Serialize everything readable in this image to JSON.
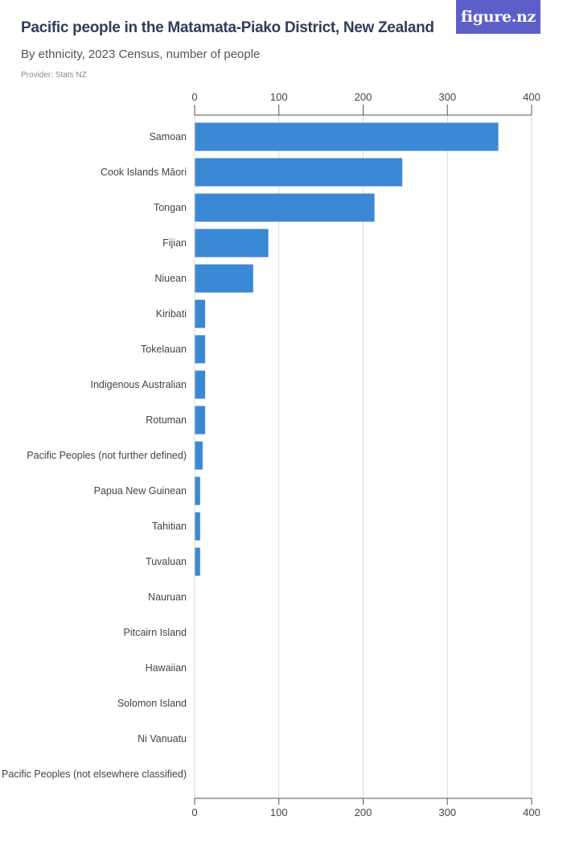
{
  "header": {
    "title": "Pacific people in the Matamata-Piako District, New Zealand",
    "subtitle": "By ethnicity, 2023 Census, number of people",
    "provider": "Provider: Stats NZ",
    "logo_text": "figure.nz"
  },
  "colors": {
    "bar": "#3b88d4",
    "grid": "#d9d9d9",
    "logo_bg": "#5d5fc9",
    "title": "#2f3e5a"
  },
  "chart_data": {
    "type": "bar",
    "orientation": "horizontal",
    "title": "Pacific people in the Matamata-Piako District, New Zealand",
    "subtitle": "By ethnicity, 2023 Census, number of people",
    "xlabel": "",
    "ylabel": "",
    "xlim": [
      0,
      400
    ],
    "ticks": [
      0,
      100,
      200,
      300,
      400
    ],
    "tick_labels": [
      "0",
      "100",
      "200",
      "300",
      "400"
    ],
    "grid": true,
    "categories": [
      "Samoan",
      "Cook Islands Māori",
      "Tongan",
      "Fijian",
      "Niuean",
      "Kiribati",
      "Tokelauan",
      "Indigenous Australian",
      "Rotuman",
      "Pacific Peoples (not further defined)",
      "Papua New Guinean",
      "Tahitian",
      "Tuvaluan",
      "Nauruan",
      "Pitcairn Island",
      "Hawaiian",
      "Solomon Island",
      "Ni Vanuatu",
      "Pacific Peoples (not elsewhere classified)"
    ],
    "values": [
      360,
      246,
      213,
      87,
      69,
      12,
      12,
      12,
      12,
      9,
      6,
      6,
      6,
      0,
      0,
      0,
      0,
      0,
      0
    ]
  }
}
